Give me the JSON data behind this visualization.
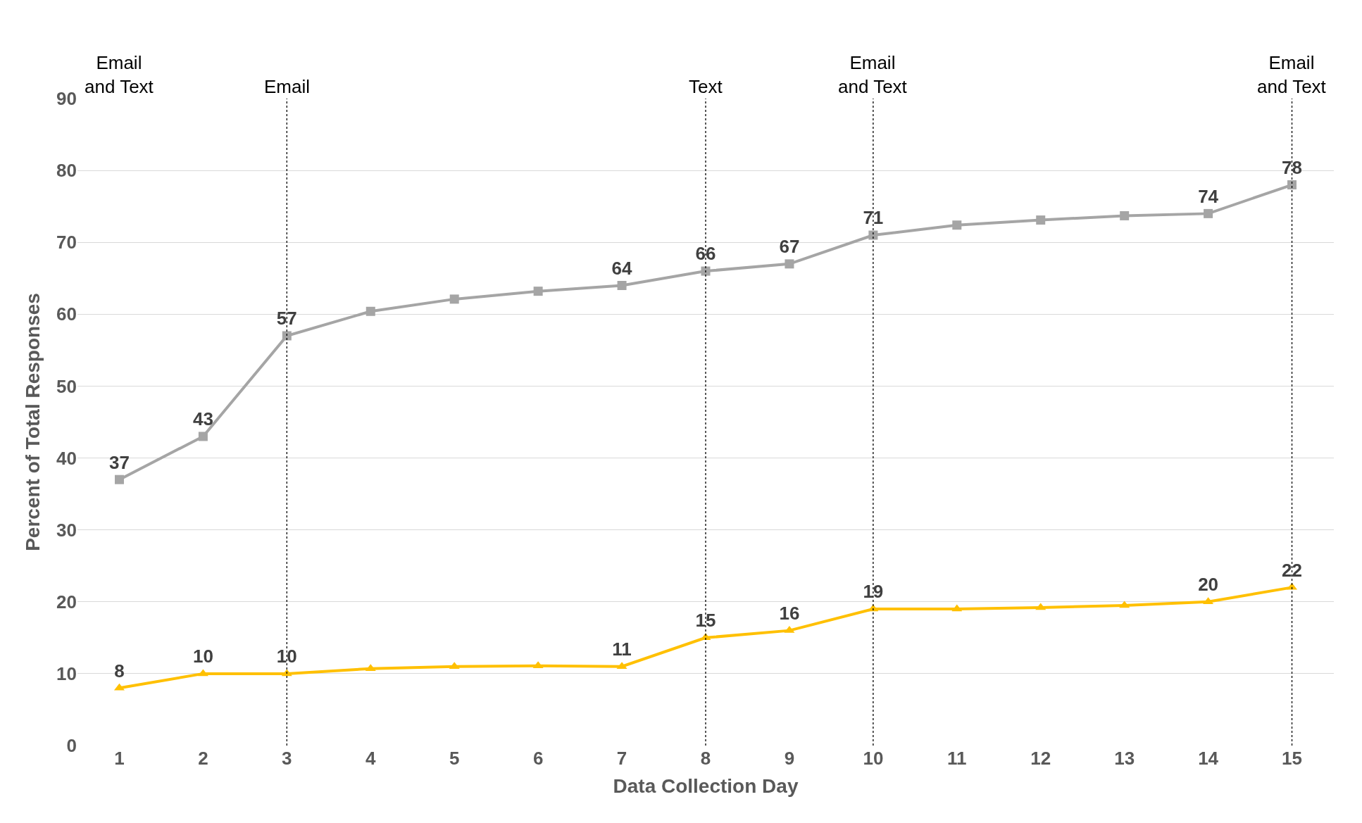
{
  "chart_data": {
    "type": "line",
    "xlabel": "Data Collection Day",
    "ylabel": "Percent of Total Responses",
    "x": [
      1,
      2,
      3,
      4,
      5,
      6,
      7,
      8,
      9,
      10,
      11,
      12,
      13,
      14,
      15
    ],
    "xlim": [
      0.5,
      15.5
    ],
    "xticks": [
      1,
      2,
      3,
      4,
      5,
      6,
      7,
      8,
      9,
      10,
      11,
      12,
      13,
      14,
      15
    ],
    "ylim": [
      0,
      90
    ],
    "yticks": [
      0,
      10,
      20,
      30,
      40,
      50,
      60,
      70,
      80,
      90
    ],
    "grid": "y",
    "series": [
      {
        "color": "#a5a5a5",
        "marker": "square",
        "values": [
          37,
          43,
          57,
          60.4,
          62.1,
          63.2,
          64,
          66,
          67,
          71,
          72.4,
          73.1,
          73.7,
          74,
          78
        ],
        "value_labels": [
          "37",
          "43",
          "57",
          null,
          null,
          null,
          "64",
          "66",
          "67",
          "71",
          null,
          null,
          null,
          "74",
          "78"
        ]
      },
      {
        "color": "#ffc000",
        "marker": "triangle",
        "values": [
          8,
          10,
          10,
          10.7,
          11,
          11.1,
          11,
          15,
          16,
          19,
          19,
          19.2,
          19.5,
          20,
          22
        ],
        "value_labels": [
          "8",
          "10",
          "10",
          null,
          null,
          null,
          "11",
          "15",
          "16",
          "19",
          null,
          null,
          null,
          "20",
          "22"
        ]
      }
    ],
    "ref_lines": [
      {
        "axis": "x",
        "value": 3,
        "label": "Email",
        "line_style": "dotted",
        "color": "#000000"
      },
      {
        "axis": "x",
        "value": 8,
        "label": "Text",
        "line_style": "dotted",
        "color": "#000000"
      },
      {
        "axis": "x",
        "value": 10,
        "label": "Email and Text",
        "line_style": "dotted",
        "color": "#000000"
      },
      {
        "axis": "x",
        "value": 15,
        "label": "Email and Text",
        "line_style": "dotted",
        "color": "#000000"
      }
    ],
    "annotations": [
      "Email and Text"
    ]
  }
}
